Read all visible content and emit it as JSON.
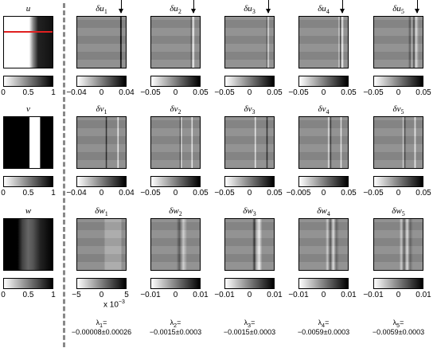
{
  "left_column": [
    {
      "label": "u",
      "ticks": [
        "0",
        "0.5",
        "1"
      ],
      "has_red_line": true,
      "colors": {
        "line": "#e02020"
      }
    },
    {
      "label": "v",
      "ticks": [
        "0",
        "0.5",
        "1"
      ]
    },
    {
      "label": "w",
      "ticks": [
        "0",
        "0.5",
        "1"
      ]
    }
  ],
  "grid": {
    "rows": [
      {
        "var": "u",
        "cols": [
          {
            "label": "δu",
            "sub": "1",
            "ticks": [
              "−0.04",
              "0",
              "0.04"
            ]
          },
          {
            "label": "δu",
            "sub": "2",
            "ticks": [
              "−0.05",
              "0",
              "0.05"
            ]
          },
          {
            "label": "δu",
            "sub": "3",
            "ticks": [
              "−0.05",
              "0",
              "0.05"
            ]
          },
          {
            "label": "δu",
            "sub": "4",
            "ticks": [
              "−0.05",
              "0",
              "0.05"
            ]
          },
          {
            "label": "δu",
            "sub": "5",
            "ticks": [
              "−0.05",
              "0",
              "0.05"
            ]
          }
        ]
      },
      {
        "var": "v",
        "cols": [
          {
            "label": "δv",
            "sub": "1",
            "ticks": [
              "−0.04",
              "0",
              "0.04"
            ]
          },
          {
            "label": "δv",
            "sub": "2",
            "ticks": [
              "−0.05",
              "0",
              "0.05"
            ]
          },
          {
            "label": "δv",
            "sub": "3",
            "ticks": [
              "−0.05",
              "0",
              "0.05"
            ]
          },
          {
            "label": "δv",
            "sub": "4",
            "ticks": [
              "−0.005",
              "0",
              "0.05"
            ]
          },
          {
            "label": "δv",
            "sub": "5",
            "ticks": [
              "−0.05",
              "0",
              "0.05"
            ]
          }
        ]
      },
      {
        "var": "w",
        "cols": [
          {
            "label": "δw",
            "sub": "1",
            "ticks": [
              "−5",
              "0",
              "5"
            ]
          },
          {
            "label": "δw",
            "sub": "2",
            "ticks": [
              "−0.01",
              "0",
              "0.01"
            ]
          },
          {
            "label": "δw",
            "sub": "3",
            "ticks": [
              "−0.01",
              "0",
              "0.01"
            ]
          },
          {
            "label": "δw",
            "sub": "4",
            "ticks": [
              "−0.01",
              "0",
              "0.01"
            ]
          },
          {
            "label": "δw",
            "sub": "5",
            "ticks": [
              "−0.01",
              "0",
              "0.01"
            ]
          }
        ]
      }
    ]
  },
  "exponent_note": {
    "base": "x 10",
    "exp": "−3"
  },
  "eigenvalues": [
    {
      "symbol": "λ",
      "sub": "1",
      "eq": "=",
      "value": "−0.00008±0.00026"
    },
    {
      "symbol": "λ",
      "sub": "2",
      "eq": "=",
      "value": "−0.0015±0.0003"
    },
    {
      "symbol": "λ",
      "sub": "3",
      "eq": "=",
      "value": "−0.0015±0.0003"
    },
    {
      "symbol": "λ",
      "sub": "4",
      "eq": "=",
      "value": "−0.0059±0.0003"
    },
    {
      "symbol": "λ",
      "sub": "5",
      "eq": "=",
      "value": "−0.0059±0.0003"
    }
  ]
}
